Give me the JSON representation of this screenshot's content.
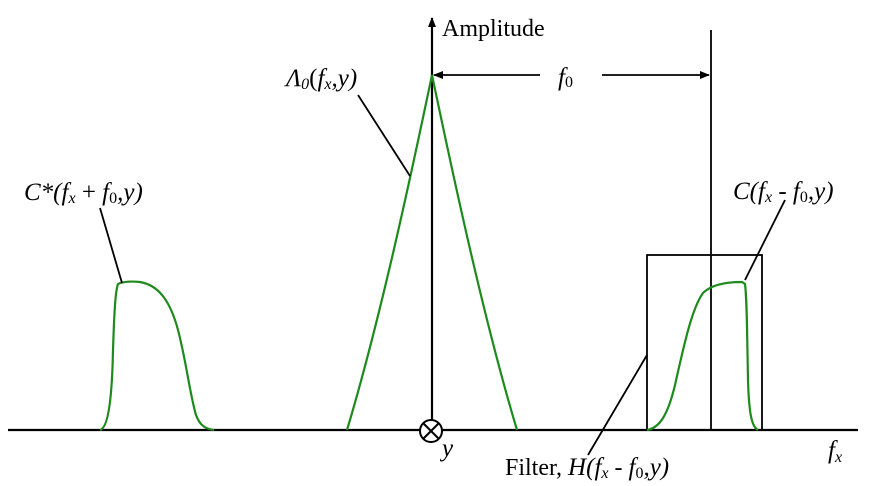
{
  "axes": {
    "vertical_label": "Amplitude",
    "horizontal_label_main": "f",
    "horizontal_label_sub": "x",
    "origin_label": "y"
  },
  "spacing_label": {
    "main": "f",
    "sub": "0"
  },
  "center_peak": {
    "label_main": "Λ",
    "label_sub1": "0",
    "label_paren_open": "(",
    "label_f": "f",
    "label_sub2": "x",
    "label_rest": ",y)"
  },
  "left_lobe": {
    "label_pre": "C*(",
    "label_f1": "f",
    "label_sub1": "x",
    "label_mid": " + ",
    "label_f2": "f",
    "label_sub2": "0",
    "label_rest": ",y)"
  },
  "right_lobe": {
    "label_pre": "C(",
    "label_f1": "f",
    "label_sub1": "x",
    "label_mid": " - ",
    "label_f2": "f",
    "label_sub2": "0",
    "label_rest": ",y)"
  },
  "filter": {
    "label_word": "Filter, ",
    "label_h": "H(",
    "label_f1": "f",
    "label_sub1": "x",
    "label_mid": " - ",
    "label_f2": "f",
    "label_sub2": "0",
    "label_rest": ",y)"
  },
  "colors": {
    "spectrum": "#1e8a1e",
    "lines": "#000000"
  }
}
